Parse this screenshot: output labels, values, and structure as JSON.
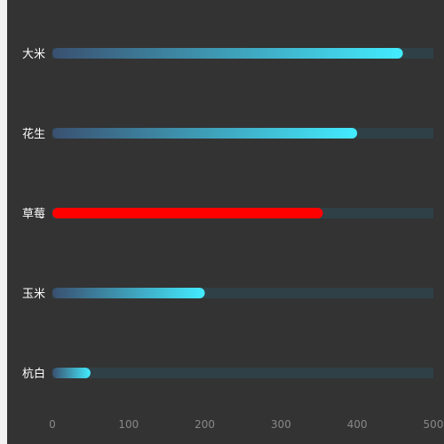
{
  "chart_data": {
    "type": "bar",
    "orientation": "horizontal",
    "categories": [
      "大米",
      "花生",
      "草莓",
      "玉米",
      "杭白"
    ],
    "values": [
      460,
      400,
      355,
      200,
      50
    ],
    "xlim": [
      0,
      500
    ],
    "x_ticks": [
      "0",
      "100",
      "200",
      "300",
      "400",
      "500"
    ],
    "grid": false,
    "legend": "none",
    "colors": {
      "background": "#333333",
      "track": "#2f4047",
      "gradient_start": "#3a5070",
      "gradient_end": "#43ecff",
      "highlight": "#ff0000",
      "label_text": "#ffffff",
      "tick_text": "#888888"
    },
    "highlight_category": "草莓"
  }
}
